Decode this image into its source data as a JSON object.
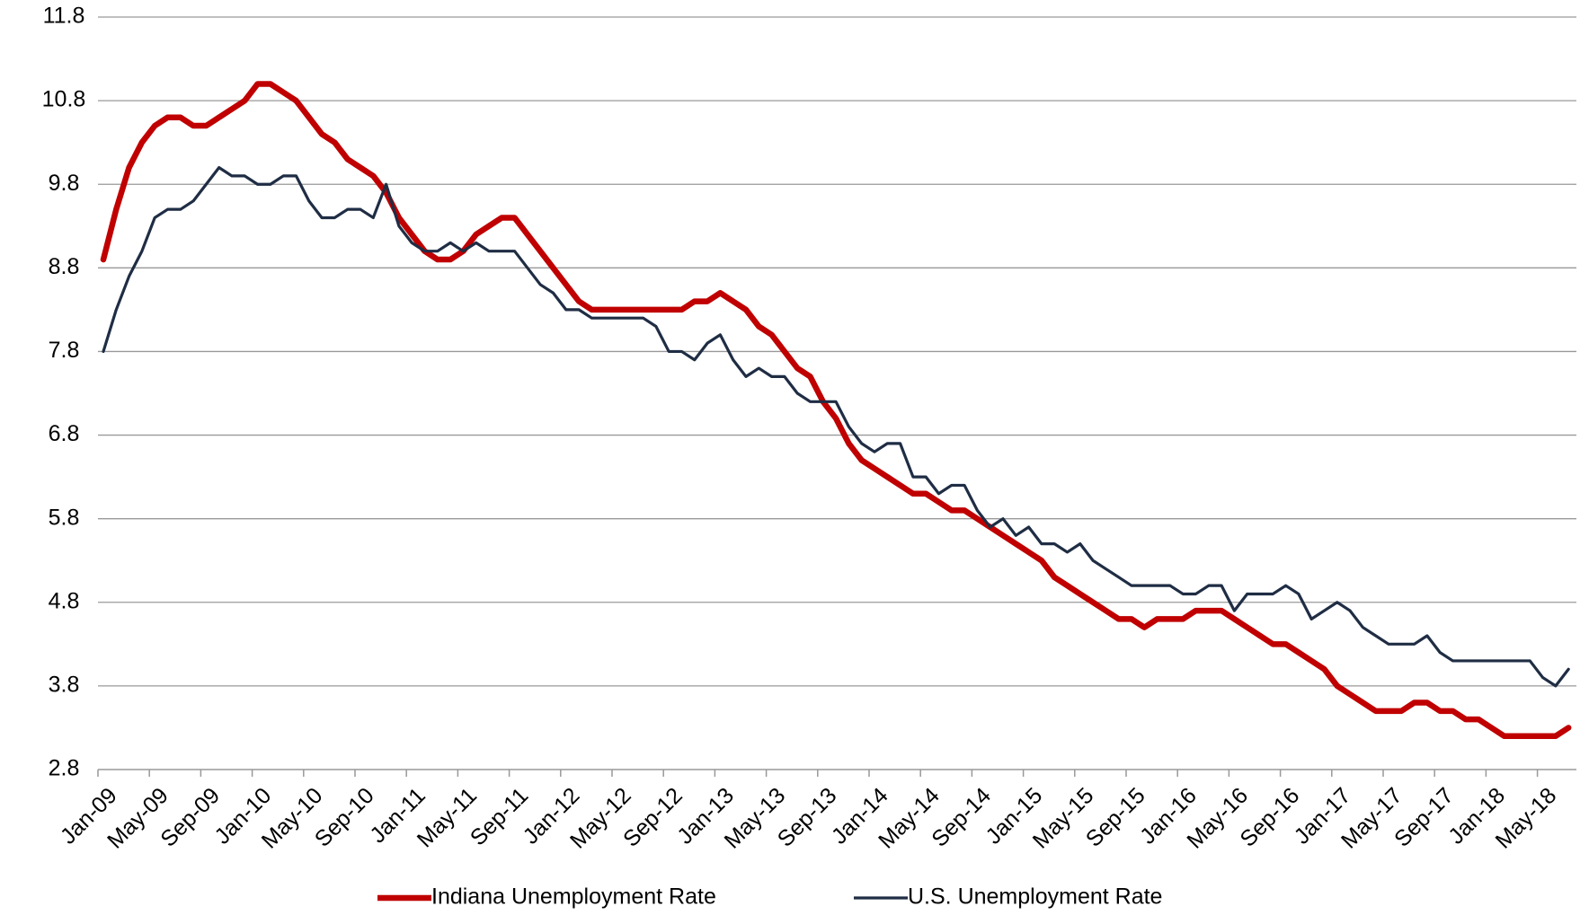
{
  "chart_data": {
    "type": "line",
    "categories": [
      "Jan-09",
      null,
      null,
      null,
      "May-09",
      null,
      null,
      null,
      "Sep-09",
      null,
      null,
      null,
      "Jan-10",
      null,
      null,
      null,
      "May-10",
      null,
      null,
      null,
      "Sep-10",
      null,
      null,
      null,
      "Jan-11",
      null,
      null,
      null,
      "May-11",
      null,
      null,
      null,
      "Sep-11",
      null,
      null,
      null,
      "Jan-12",
      null,
      null,
      null,
      "May-12",
      null,
      null,
      null,
      "Sep-12",
      null,
      null,
      null,
      "Jan-13",
      null,
      null,
      null,
      "May-13",
      null,
      null,
      null,
      "Sep-13",
      null,
      null,
      null,
      "Jan-14",
      null,
      null,
      null,
      "May-14",
      null,
      null,
      null,
      "Sep-14",
      null,
      null,
      null,
      "Jan-15",
      null,
      null,
      null,
      "May-15",
      null,
      null,
      null,
      "Sep-15",
      null,
      null,
      null,
      "Jan-16",
      null,
      null,
      null,
      "May-16",
      null,
      null,
      null,
      "Sep-16",
      null,
      null,
      null,
      "Jan-17",
      null,
      null,
      null,
      "May-17",
      null,
      null,
      null,
      "Sep-17",
      null,
      null,
      null,
      "Jan-18",
      null,
      null,
      null,
      "May-18",
      null,
      null
    ],
    "series": [
      {
        "name": "Indiana Unemployment Rate",
        "color": "#c00000",
        "values": [
          8.9,
          9.5,
          10.0,
          10.3,
          10.5,
          10.6,
          10.6,
          10.5,
          10.5,
          10.6,
          10.7,
          10.8,
          11.0,
          11.0,
          10.9,
          10.8,
          10.6,
          10.4,
          10.3,
          10.1,
          10.0,
          9.9,
          9.7,
          9.4,
          9.2,
          9.0,
          8.9,
          8.9,
          9.0,
          9.2,
          9.3,
          9.4,
          9.4,
          9.2,
          9.0,
          8.8,
          8.6,
          8.4,
          8.3,
          8.3,
          8.3,
          8.3,
          8.3,
          8.3,
          8.3,
          8.3,
          8.4,
          8.4,
          8.5,
          8.4,
          8.3,
          8.1,
          8.0,
          7.8,
          7.6,
          7.5,
          7.2,
          7.0,
          6.7,
          6.5,
          6.4,
          6.3,
          6.2,
          6.1,
          6.1,
          6.0,
          5.9,
          5.9,
          5.8,
          5.7,
          5.6,
          5.5,
          5.4,
          5.3,
          5.1,
          5.0,
          4.9,
          4.8,
          4.7,
          4.6,
          4.6,
          4.5,
          4.6,
          4.6,
          4.6,
          4.7,
          4.7,
          4.7,
          4.6,
          4.5,
          4.4,
          4.3,
          4.3,
          4.2,
          4.1,
          4.0,
          3.8,
          3.7,
          3.6,
          3.5,
          3.5,
          3.5,
          3.6,
          3.6,
          3.5,
          3.5,
          3.4,
          3.4,
          3.3,
          3.2,
          3.2,
          3.2,
          3.2,
          3.2,
          3.3
        ]
      },
      {
        "name": "U.S. Unemployment Rate",
        "color": "#1f2d44",
        "values": [
          7.8,
          8.3,
          8.7,
          9.0,
          9.4,
          9.5,
          9.5,
          9.6,
          9.8,
          10.0,
          9.9,
          9.9,
          9.8,
          9.8,
          9.9,
          9.9,
          9.6,
          9.4,
          9.4,
          9.5,
          9.5,
          9.4,
          9.8,
          9.3,
          9.1,
          9.0,
          9.0,
          9.1,
          9.0,
          9.1,
          9.0,
          9.0,
          9.0,
          8.8,
          8.6,
          8.5,
          8.3,
          8.3,
          8.2,
          8.2,
          8.2,
          8.2,
          8.2,
          8.1,
          7.8,
          7.8,
          7.7,
          7.9,
          8.0,
          7.7,
          7.5,
          7.6,
          7.5,
          7.5,
          7.3,
          7.2,
          7.2,
          7.2,
          6.9,
          6.7,
          6.6,
          6.7,
          6.7,
          6.3,
          6.3,
          6.1,
          6.2,
          6.2,
          5.9,
          5.7,
          5.8,
          5.6,
          5.7,
          5.5,
          5.5,
          5.4,
          5.5,
          5.3,
          5.2,
          5.1,
          5.0,
          5.0,
          5.0,
          5.0,
          4.9,
          4.9,
          5.0,
          5.0,
          4.7,
          4.9,
          4.9,
          4.9,
          5.0,
          4.9,
          4.6,
          4.7,
          4.8,
          4.7,
          4.5,
          4.4,
          4.3,
          4.3,
          4.3,
          4.4,
          4.2,
          4.1,
          4.1,
          4.1,
          4.1,
          4.1,
          4.1,
          4.1,
          3.9,
          3.8,
          4.0
        ]
      }
    ],
    "ylim": [
      2.8,
      11.8
    ],
    "yticks": [
      2.8,
      3.8,
      4.8,
      5.8,
      6.8,
      7.8,
      8.8,
      9.8,
      10.8,
      11.8
    ],
    "grid": true
  }
}
